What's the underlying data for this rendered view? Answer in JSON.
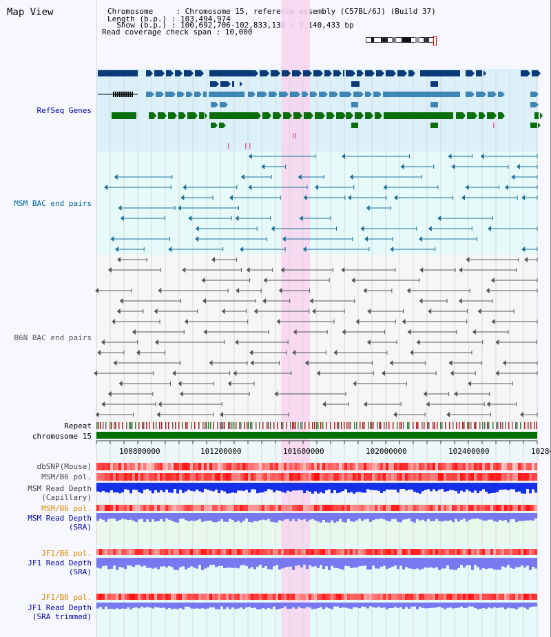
{
  "view": {
    "title": "Map View",
    "info_lines": [
      "Chromosome     : Chromosome 15, reference assembly (C57BL/6J) (Build 37)",
      "Length (b.p.) : 103,494,974",
      "  Show (b.p.) : 100,692,706-102,833,138 : 2,140,433 bp",
      "Read coverage check span : 10,000"
    ]
  },
  "tracks": [
    {
      "label": "RefSeq Genes",
      "color": "#0000aa"
    },
    {
      "label": "MSM BAC end pairs",
      "color": "#006699"
    },
    {
      "label": "B6N BAC end pairs",
      "color": "#555555"
    },
    {
      "label": "Repeat",
      "color": "#000000"
    },
    {
      "label": "chromosome 15",
      "color": "#000000"
    },
    {
      "label": "dbSNP(Mouse)",
      "color": "#444444"
    },
    {
      "label": "MSM/B6 pol.",
      "color": "#444444"
    },
    {
      "label": "MSM Read Depth\n(Capillary)",
      "color": "#444444"
    },
    {
      "label": "MSM/B6 pol.",
      "color": "#e08a00"
    },
    {
      "label": "MSM Read Depth\n(SRA)",
      "color": "#0000aa"
    },
    {
      "label": "JF1/B6 pol.",
      "color": "#e08a00"
    },
    {
      "label": "JF1 Read Depth\n(SRA)",
      "color": "#0000aa"
    },
    {
      "label": "JF1/B6 pol.",
      "color": "#e08a00"
    },
    {
      "label": "JF1 Read Depth\n(SRA trimmed)",
      "color": "#0000aa"
    }
  ],
  "axis": {
    "ticks": [
      "100800000",
      "101200000",
      "101600000",
      "102000000",
      "102400000",
      "10280"
    ]
  },
  "highlight": {
    "start_bp": 101590000,
    "end_bp": 101730000,
    "color": "#f8d4f0"
  },
  "colors": {
    "refseq_bg": "#dcf0fa",
    "bac_bg": "#e6fafa",
    "dark_gene": "#0a3a78",
    "mid_gene": "#3d86b5",
    "green_gene": "#0a6e0a",
    "msm_bac": "#1a6e9a",
    "b6n_bac": "#555555",
    "chromosome": "#007000",
    "depth_blue": "#1530e8",
    "depth_purple": "#7878f0"
  }
}
